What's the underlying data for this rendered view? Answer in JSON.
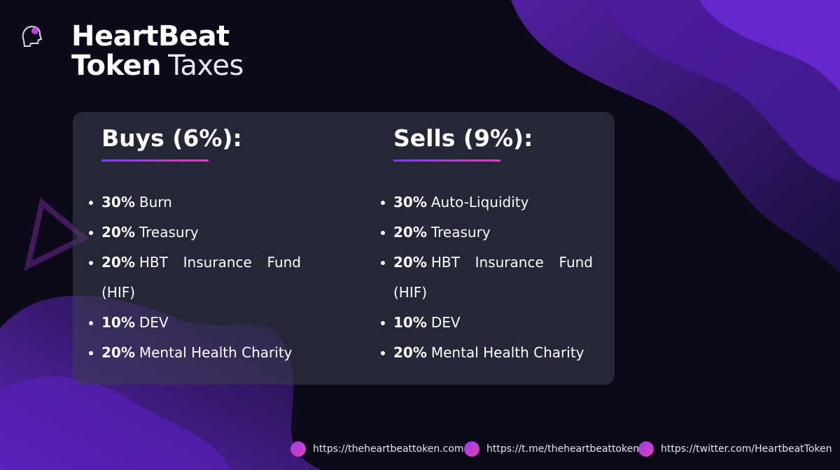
{
  "header": {
    "title_line1": "HeartBeat",
    "title_line2_bold": "Token",
    "title_line2_light": "Taxes"
  },
  "columns": [
    {
      "heading": "Buys (6%):",
      "items": [
        {
          "percent": "30%",
          "label": "Burn"
        },
        {
          "percent": "20%",
          "label": "Treasury"
        },
        {
          "percent": "20%",
          "label": "HBT Insurance Fund (HIF)"
        },
        {
          "percent": "10%",
          "label": "DEV"
        },
        {
          "percent": "20%",
          "label": "Mental Health Charity"
        }
      ]
    },
    {
      "heading": "Sells (9%):",
      "items": [
        {
          "percent": "30%",
          "label": "Auto-Liquidity"
        },
        {
          "percent": "20%",
          "label": "Treasury"
        },
        {
          "percent": "20%",
          "label": "HBT Insurance Fund (HIF)"
        },
        {
          "percent": "10%",
          "label": "DEV"
        },
        {
          "percent": "20%",
          "label": "Mental Health Charity"
        }
      ]
    }
  ],
  "footer": {
    "links": [
      "https://theheartbeattoken.com",
      "https://t.me/theheartbeattoken",
      "https://twitter.com/HeartbeatToken"
    ]
  }
}
